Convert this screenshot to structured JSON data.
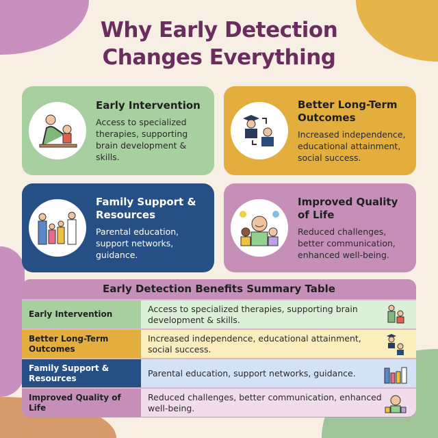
{
  "title": {
    "line1": "Why Early Detection",
    "line2": "Changes Everything"
  },
  "colors": {
    "title": "#6b2d5e",
    "green": "#a8cf9f",
    "yellow": "#e3ae3e",
    "blue": "#264f86",
    "purple": "#c58fb8",
    "background": "#f7efe4"
  },
  "cards": [
    {
      "heading": "Early Intervention",
      "body": "Access to specialized therapies, supporting brain development & skills.",
      "icon": "therapist-child-icon"
    },
    {
      "heading": "Better Long-Term Outcomes",
      "body": "Increased independence, educational attainment, social success.",
      "icon": "graduate-professional-icon"
    },
    {
      "heading": "Family Support & Resources",
      "body": "Parental education, support networks, guidance.",
      "icon": "family-doctor-icon"
    },
    {
      "heading": "Improved Quality of Life",
      "body": "Reduced challenges, better communication, enhanced well-being.",
      "icon": "happy-children-icon"
    }
  ],
  "table": {
    "title": "Early Detection Benefits Summary Table",
    "rows": [
      {
        "label": "Early Intervention",
        "value": "Access to specialized therapies, supporting brain development & skills."
      },
      {
        "label": "Better Long-Term Outcomes",
        "value": "Increased independence, educational attainment, social success."
      },
      {
        "label": "Family Support & Resources",
        "value": "Parental education, support networks, guidance."
      },
      {
        "label": "Improved Quality of Life",
        "value": "Reduced challenges, better communication, enhanced well-being."
      }
    ]
  }
}
